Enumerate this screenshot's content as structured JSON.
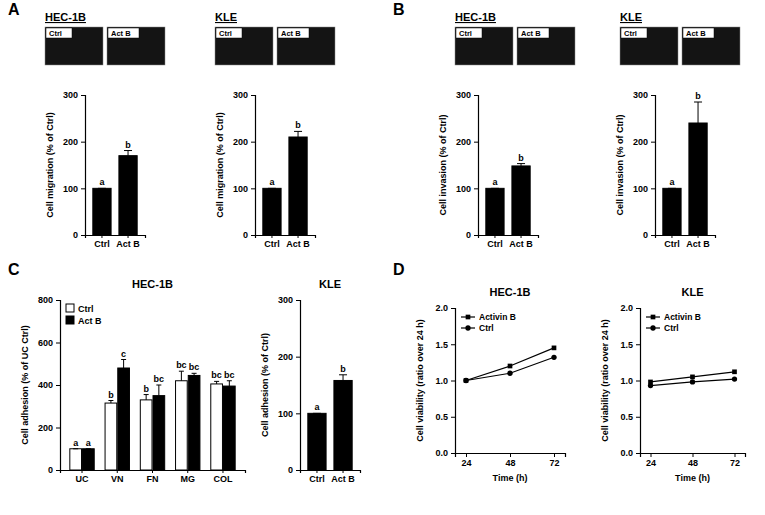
{
  "panel_labels": [
    "A",
    "B",
    "C",
    "D"
  ],
  "chart_data": [
    {
      "type": "bar",
      "title": "HEC-1B",
      "image_labels": [
        "Ctrl",
        "Act B"
      ],
      "categories": [
        "Ctrl",
        "Act B"
      ],
      "values": [
        100,
        170
      ],
      "errors": [
        0,
        11
      ],
      "letters": [
        "a",
        "b"
      ],
      "color": "#000000",
      "y_label": "Cell migration (% of Ctrl)",
      "ylim": [
        0,
        300
      ],
      "yticks": [
        0,
        100,
        200,
        300
      ]
    },
    {
      "type": "bar",
      "title": "KLE",
      "image_labels": [
        "Ctrl",
        "Act B"
      ],
      "categories": [
        "Ctrl",
        "Act B"
      ],
      "values": [
        100,
        210
      ],
      "errors": [
        0,
        12
      ],
      "letters": [
        "a",
        "b"
      ],
      "color": "#000000",
      "y_label": "Cell migration (% of Ctrl)",
      "ylim": [
        0,
        300
      ],
      "yticks": [
        0,
        100,
        200,
        300
      ]
    },
    {
      "type": "bar",
      "title": "HEC-1B",
      "image_labels": [
        "Ctrl",
        "Act B"
      ],
      "categories": [
        "Ctrl",
        "Act B"
      ],
      "values": [
        100,
        148
      ],
      "errors": [
        0,
        5
      ],
      "letters": [
        "a",
        "b"
      ],
      "color": "#000000",
      "y_label": "Cell invasion (% of Ctrl)",
      "ylim": [
        0,
        300
      ],
      "yticks": [
        0,
        100,
        200,
        300
      ]
    },
    {
      "type": "bar",
      "title": "KLE",
      "image_labels": [
        "Ctrl",
        "Act B"
      ],
      "categories": [
        "Ctrl",
        "Act B"
      ],
      "values": [
        100,
        240
      ],
      "errors": [
        0,
        45
      ],
      "letters": [
        "a",
        "b"
      ],
      "color": "#000000",
      "y_label": "Cell invasion (% of Ctrl)",
      "ylim": [
        0,
        300
      ],
      "yticks": [
        0,
        100,
        200,
        300
      ]
    },
    {
      "type": "bar",
      "title": "HEC-1B",
      "categories": [
        "UC",
        "VN",
        "FN",
        "MG",
        "COL"
      ],
      "legend": "upper left",
      "y_label": "Cell adhesion (% of UC Ctrl)",
      "ylim": [
        0,
        800
      ],
      "yticks": [
        0,
        200,
        400,
        600,
        800
      ],
      "series": [
        {
          "name": "Ctrl",
          "color": "#ffffff",
          "values": [
            100,
            315,
            330,
            420,
            405
          ],
          "errors": [
            0,
            12,
            25,
            45,
            12
          ],
          "letters": [
            "a",
            "b",
            "b",
            "bc",
            "bc"
          ]
        },
        {
          "name": "Act B",
          "color": "#000000",
          "values": [
            100,
            480,
            350,
            445,
            395
          ],
          "errors": [
            0,
            40,
            50,
            10,
            25
          ],
          "letters": [
            "a",
            "c",
            "bc",
            "bc",
            "bc"
          ]
        }
      ]
    },
    {
      "type": "bar",
      "title": "KLE",
      "categories": [
        "Ctrl",
        "Act B"
      ],
      "values": [
        100,
        158
      ],
      "errors": [
        0,
        10
      ],
      "letters": [
        "a",
        "b"
      ],
      "color": "#000000",
      "y_label": "Cell adhesion (% of Ctrl)",
      "ylim": [
        0,
        300
      ],
      "yticks": [
        0,
        100,
        200,
        300
      ]
    },
    {
      "type": "line",
      "title": "HEC-1B",
      "x": [
        24,
        48,
        72
      ],
      "xlim": [
        18,
        78
      ],
      "xticks": [
        24,
        48,
        72
      ],
      "x_label": "Time (h)",
      "y_label": "Cell viability (ratio over 24 h)",
      "ylim": [
        0,
        2
      ],
      "yticks": [
        {
          "value": 0,
          "label": "0.0"
        },
        {
          "value": 0.5,
          "label": "0.5"
        },
        {
          "value": 1,
          "label": "1.0"
        },
        {
          "value": 1.5,
          "label": "1.5"
        },
        {
          "value": 2,
          "label": "2.0"
        }
      ],
      "legend": "upper left",
      "series": [
        {
          "name": "Activin B",
          "color": "#000000",
          "marker": "square",
          "values": [
            1.0,
            1.2,
            1.45
          ]
        },
        {
          "name": "Ctrl",
          "color": "#000000",
          "marker": "circle",
          "values": [
            1.0,
            1.1,
            1.32
          ]
        }
      ]
    },
    {
      "type": "line",
      "title": "KLE",
      "x": [
        24,
        48,
        72
      ],
      "xlim": [
        18,
        78
      ],
      "xticks": [
        24,
        48,
        72
      ],
      "x_label": "Time (h)",
      "y_label": "Cell viability (ratio over 24 h)",
      "ylim": [
        0,
        2
      ],
      "yticks": [
        {
          "value": 0,
          "label": "0.0"
        },
        {
          "value": 0.5,
          "label": "0.5"
        },
        {
          "value": 1,
          "label": "1.0"
        },
        {
          "value": 1.5,
          "label": "1.5"
        },
        {
          "value": 2,
          "label": "2.0"
        }
      ],
      "legend": "upper left",
      "series": [
        {
          "name": "Activin B",
          "color": "#000000",
          "marker": "square",
          "values": [
            0.98,
            1.05,
            1.12
          ]
        },
        {
          "name": "Ctrl",
          "color": "#000000",
          "marker": "circle",
          "values": [
            0.93,
            0.98,
            1.02
          ]
        }
      ]
    }
  ]
}
